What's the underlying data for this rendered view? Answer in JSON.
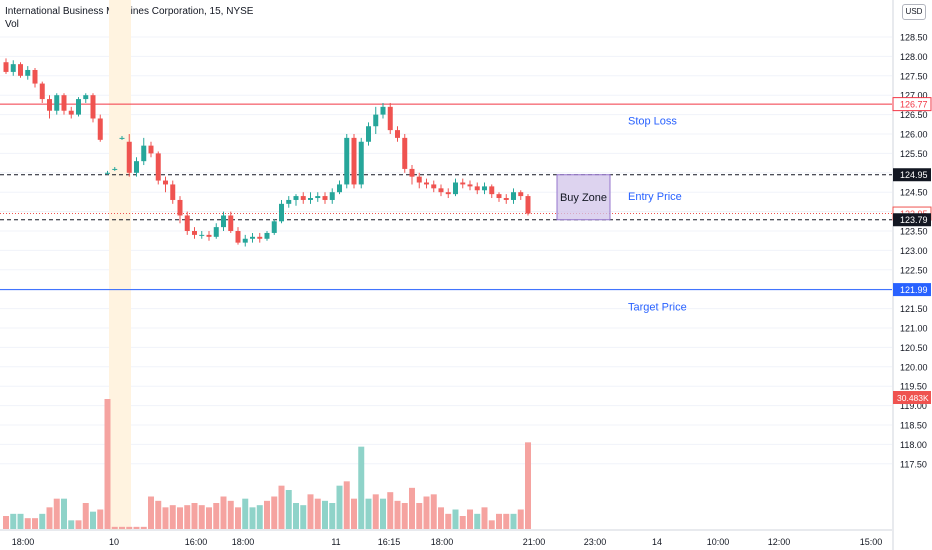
{
  "header": {
    "title": "International Business Machines Corporation, 15, NYSE",
    "indicator": "Vol",
    "currency": "USD"
  },
  "colors": {
    "up": "#26a69a",
    "down": "#ef5350",
    "vol_up": "#8fd3c9",
    "vol_down": "#f5a3a0",
    "stop": "#f23645",
    "target": "#2962ff",
    "label_text": "#2962ff",
    "buy_zone_fill": "#d1c4e9",
    "buy_zone_border": "#9575cd",
    "session_highlight": "#fff3e0"
  },
  "chart_data": {
    "type": "candlestick",
    "price_axis": {
      "min": 117.25,
      "max": 128.9,
      "ticks": [
        "128.50",
        "128.00",
        "127.50",
        "127.00",
        "126.50",
        "126.00",
        "125.50",
        "125.00",
        "124.50",
        "124.00",
        "123.50",
        "123.00",
        "122.50",
        "122.00",
        "121.50",
        "121.00",
        "120.50",
        "120.00",
        "119.50",
        "119.00",
        "118.50",
        "118.00",
        "117.50"
      ]
    },
    "time_axis": {
      "labels": [
        "18:00",
        "10",
        "16:00",
        "18:00",
        "11",
        "16:15",
        "18:00",
        "21:00",
        "23:00",
        "14",
        "10:00",
        "12:00",
        "15:00"
      ]
    },
    "candles": [
      [
        127.85,
        127.6,
        127.95,
        127.55
      ],
      [
        127.6,
        127.8,
        127.9,
        127.5
      ],
      [
        127.8,
        127.5,
        127.85,
        127.45
      ],
      [
        127.5,
        127.65,
        127.75,
        127.4
      ],
      [
        127.65,
        127.3,
        127.7,
        127.2
      ],
      [
        127.3,
        126.9,
        127.35,
        126.8
      ],
      [
        126.9,
        126.6,
        127.0,
        126.4
      ],
      [
        126.6,
        127.0,
        127.05,
        126.5
      ],
      [
        127.0,
        126.6,
        127.05,
        126.5
      ],
      [
        126.6,
        126.5,
        126.7,
        126.4
      ],
      [
        126.5,
        126.9,
        126.95,
        126.45
      ],
      [
        126.9,
        127.0,
        127.05,
        126.8
      ],
      [
        127.0,
        126.4,
        127.05,
        126.3
      ],
      [
        126.4,
        125.85,
        126.5,
        125.8
      ],
      [
        125.0,
        125.0,
        125.05,
        124.95
      ],
      [
        125.1,
        125.1,
        125.15,
        125.05
      ],
      [
        125.9,
        125.9,
        125.95,
        125.85
      ],
      [
        125.8,
        125.0,
        126.0,
        124.9
      ],
      [
        125.0,
        125.3,
        125.4,
        124.9
      ],
      [
        125.3,
        125.7,
        125.9,
        125.2
      ],
      [
        125.7,
        125.5,
        125.8,
        125.4
      ],
      [
        125.5,
        124.8,
        125.55,
        124.7
      ],
      [
        124.8,
        124.7,
        124.9,
        124.5
      ],
      [
        124.7,
        124.3,
        124.8,
        124.2
      ],
      [
        124.3,
        123.9,
        124.4,
        123.7
      ],
      [
        123.9,
        123.5,
        124.0,
        123.4
      ],
      [
        123.5,
        123.4,
        123.6,
        123.3
      ],
      [
        123.4,
        123.4,
        123.5,
        123.3
      ],
      [
        123.4,
        123.35,
        123.5,
        123.25
      ],
      [
        123.35,
        123.6,
        123.7,
        123.3
      ],
      [
        123.6,
        123.9,
        124.0,
        123.5
      ],
      [
        123.9,
        123.5,
        124.0,
        123.45
      ],
      [
        123.5,
        123.2,
        123.6,
        123.15
      ],
      [
        123.2,
        123.3,
        123.4,
        123.1
      ],
      [
        123.3,
        123.35,
        123.45,
        123.2
      ],
      [
        123.35,
        123.3,
        123.45,
        123.2
      ],
      [
        123.3,
        123.45,
        123.5,
        123.25
      ],
      [
        123.45,
        123.75,
        123.8,
        123.4
      ],
      [
        123.75,
        124.2,
        124.3,
        123.7
      ],
      [
        124.2,
        124.3,
        124.4,
        124.1
      ],
      [
        124.3,
        124.4,
        124.45,
        124.15
      ],
      [
        124.4,
        124.3,
        124.5,
        124.2
      ],
      [
        124.3,
        124.35,
        124.5,
        124.2
      ],
      [
        124.35,
        124.4,
        124.5,
        124.25
      ],
      [
        124.4,
        124.3,
        124.5,
        124.2
      ],
      [
        124.3,
        124.5,
        124.6,
        124.2
      ],
      [
        124.5,
        124.7,
        124.8,
        124.45
      ],
      [
        124.7,
        125.9,
        126.0,
        124.6
      ],
      [
        125.9,
        124.7,
        126.0,
        124.6
      ],
      [
        124.7,
        125.8,
        125.9,
        124.6
      ],
      [
        125.8,
        126.2,
        126.3,
        125.7
      ],
      [
        126.2,
        126.5,
        126.7,
        126.0
      ],
      [
        126.5,
        126.7,
        126.8,
        126.4
      ],
      [
        126.7,
        126.1,
        126.8,
        126.0
      ],
      [
        126.1,
        125.9,
        126.2,
        125.8
      ],
      [
        125.9,
        125.1,
        126.0,
        125.0
      ],
      [
        125.1,
        124.9,
        125.2,
        124.7
      ],
      [
        124.9,
        124.75,
        125.0,
        124.6
      ],
      [
        124.75,
        124.7,
        124.85,
        124.6
      ],
      [
        124.7,
        124.6,
        124.8,
        124.5
      ],
      [
        124.6,
        124.5,
        124.7,
        124.4
      ],
      [
        124.5,
        124.45,
        124.6,
        124.35
      ],
      [
        124.45,
        124.75,
        124.85,
        124.4
      ],
      [
        124.75,
        124.7,
        124.85,
        124.6
      ],
      [
        124.7,
        124.65,
        124.8,
        124.55
      ],
      [
        124.65,
        124.55,
        124.75,
        124.45
      ],
      [
        124.55,
        124.65,
        124.75,
        124.45
      ],
      [
        124.65,
        124.45,
        124.7,
        124.35
      ],
      [
        124.45,
        124.35,
        124.5,
        124.25
      ],
      [
        124.35,
        124.3,
        124.45,
        124.2
      ],
      [
        124.3,
        124.5,
        124.6,
        124.2
      ],
      [
        124.5,
        124.4,
        124.55,
        124.3
      ],
      [
        124.4,
        123.95,
        124.45,
        123.9
      ]
    ],
    "volume": {
      "axis_label": "30.483K",
      "values": [
        6,
        7,
        7,
        5,
        5,
        7,
        10,
        14,
        14,
        4,
        4,
        12,
        8,
        9,
        60,
        1,
        1,
        1,
        1,
        1,
        15,
        13,
        10,
        11,
        10,
        11,
        12,
        11,
        10,
        12,
        15,
        13,
        10,
        14,
        10,
        11,
        13,
        15,
        20,
        18,
        12,
        11,
        16,
        14,
        13,
        12,
        20,
        22,
        14,
        38,
        14,
        16,
        14,
        17,
        13,
        12,
        19,
        12,
        15,
        16,
        10,
        7,
        9,
        6,
        9,
        7,
        10,
        4,
        7,
        7,
        7,
        9,
        40
      ],
      "up_flags": [
        0,
        1,
        1,
        0,
        0,
        1,
        0,
        0,
        1,
        1,
        0,
        0,
        1,
        0,
        0,
        0,
        0,
        0,
        0,
        0,
        0,
        0,
        0,
        0,
        0,
        0,
        0,
        0,
        0,
        0,
        0,
        0,
        0,
        1,
        1,
        1,
        0,
        0,
        0,
        1,
        1,
        1,
        0,
        0,
        1,
        1,
        1,
        0,
        0,
        1,
        1,
        0,
        1,
        0,
        0,
        0,
        0,
        0,
        0,
        0,
        0,
        0,
        1,
        0,
        0,
        1,
        0,
        0,
        0,
        0,
        1,
        0,
        0
      ]
    },
    "horizontal_lines": [
      {
        "price": 126.77,
        "label": "126.77",
        "style": "solid",
        "kind": "stop"
      },
      {
        "price": 124.95,
        "label": "124.95",
        "style": "dashed",
        "kind": "black"
      },
      {
        "price": 123.95,
        "label": "123.95",
        "style": "dotted",
        "kind": "current"
      },
      {
        "price": 123.79,
        "label": "123.79",
        "style": "dashed",
        "kind": "black"
      },
      {
        "price": 121.99,
        "label": "121.99",
        "style": "solid",
        "kind": "target"
      }
    ],
    "annotations": [
      {
        "text": "Stop Loss",
        "price": 126.35
      },
      {
        "text": "Entry Price",
        "price": 124.4
      },
      {
        "text": "Target Price",
        "price": 121.55
      }
    ],
    "buy_zone": {
      "text": "Buy Zone",
      "price_top": 124.95,
      "price_bottom": 123.79
    }
  }
}
